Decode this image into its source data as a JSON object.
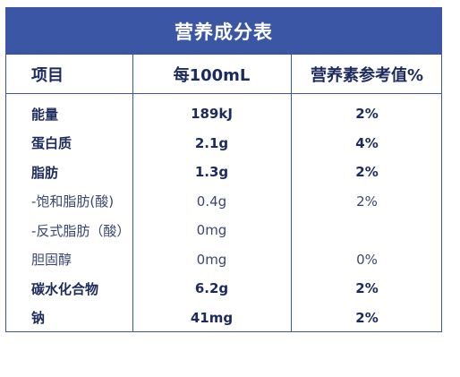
{
  "header": {
    "title": "营养成分表"
  },
  "table": {
    "columns": [
      "项目",
      "每100mL",
      "营养素参考值%"
    ],
    "rows": [
      [
        "能量",
        "189kJ",
        "2%"
      ],
      [
        "蛋白质",
        "2.1g",
        "4%"
      ],
      [
        "脂肪",
        "1.3g",
        "2%"
      ],
      [
        "-饱和脂肪(酸)",
        "0.4g",
        "2%"
      ],
      [
        "-反式脂肪（酸）",
        "0mg"
      ],
      [
        "胆固醇",
        "0mg",
        "0%"
      ],
      [
        "碳水化合物",
        "6.2g",
        "2%"
      ],
      [
        "钠",
        "41mg",
        "2%"
      ]
    ]
  }
}
